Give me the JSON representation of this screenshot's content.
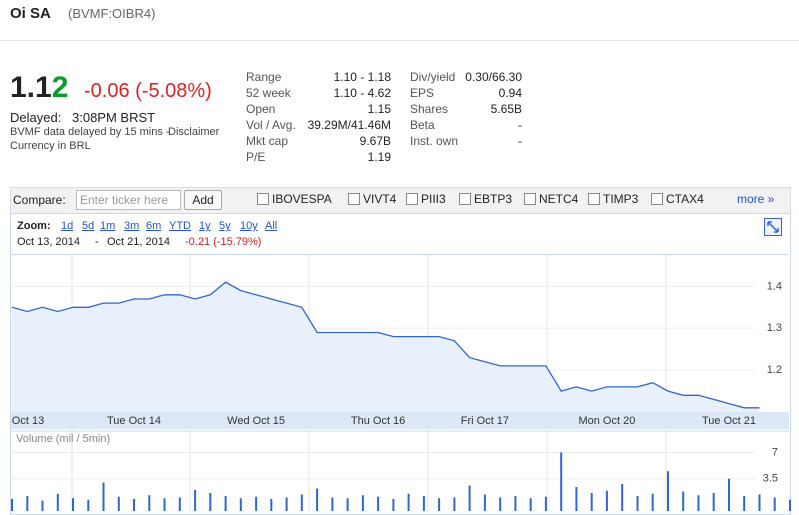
{
  "header": {
    "name": "Oi SA",
    "ticker": "(BVMF:OIBR4)"
  },
  "quote": {
    "price": "1.12",
    "change": "-0.06 (-5.08%)",
    "delayed_label": "Delayed:",
    "delayed_time": "3:08PM BRST",
    "disclaimer_note": "BVMF data delayed by 15 mins - ",
    "disclaimer_link": "Disclaimer",
    "currency": "Currency in BRL"
  },
  "stats": {
    "left": [
      [
        "Range",
        "1.10 - 1.18"
      ],
      [
        "52 week",
        "1.10 - 4.62"
      ],
      [
        "Open",
        "1.15"
      ],
      [
        "Vol / Avg.",
        "39.29M/41.46M"
      ],
      [
        "Mkt cap",
        "9.67B"
      ],
      [
        "P/E",
        "1.19"
      ]
    ],
    "right": [
      [
        "Div/yield",
        "0.30/66.30"
      ],
      [
        "EPS",
        "0.94"
      ],
      [
        "Shares",
        "5.65B"
      ],
      [
        "Beta",
        "-"
      ],
      [
        "Inst. own",
        "-"
      ]
    ]
  },
  "compare": {
    "label": "Compare:",
    "placeholder": "Enter ticker here",
    "button": "Add",
    "tickers": [
      "IBOVESPA",
      "VIVT4",
      "PIII3",
      "EBTP3",
      "NETC4",
      "TIMP3",
      "CTAX4"
    ],
    "more": "more »"
  },
  "controls": {
    "zoom_label": "Zoom:",
    "zoom": [
      "1d",
      "5d",
      "1m",
      "3m",
      "6m",
      "YTD",
      "1y",
      "5y",
      "10y",
      "All"
    ],
    "start": "Oct 13, 2014",
    "separator": "-",
    "end": "Oct 21, 2014",
    "change": "-0.21 (-15.79%)"
  },
  "chart_data": [
    {
      "type": "line",
      "categories": [
        null,
        "Oct 13",
        null,
        null,
        null,
        null,
        null,
        null,
        "Tue Oct 14",
        null,
        null,
        null,
        null,
        null,
        null,
        null,
        "Wed Oct 15",
        null,
        null,
        null,
        null,
        null,
        null,
        null,
        "Thu Oct 16",
        null,
        null,
        null,
        null,
        null,
        null,
        "Fri Oct 17",
        null,
        null,
        null,
        null,
        null,
        null,
        null,
        "Mon Oct 20",
        null,
        null,
        null,
        null,
        null,
        null,
        null,
        "Tue Oct 21",
        null,
        null,
        null,
        null
      ],
      "values": [
        1.35,
        1.34,
        1.35,
        1.34,
        1.35,
        1.35,
        1.36,
        1.36,
        1.37,
        1.37,
        1.38,
        1.38,
        1.37,
        1.38,
        1.41,
        1.39,
        1.38,
        1.37,
        1.36,
        1.35,
        1.29,
        1.29,
        1.29,
        1.29,
        1.29,
        1.28,
        1.28,
        1.28,
        1.28,
        1.27,
        1.23,
        1.22,
        1.21,
        1.21,
        1.21,
        1.21,
        1.15,
        1.16,
        1.15,
        1.16,
        1.16,
        1.16,
        1.17,
        1.15,
        1.14,
        1.14,
        1.13,
        1.12,
        1.11,
        1.11,
        null,
        null
      ],
      "color": "#3366cc",
      "ylim": [
        1.1,
        1.475
      ],
      "yticks": [
        1.2,
        1.3,
        1.4
      ],
      "grid": true
    },
    {
      "type": "bar",
      "title": "Volume (mil / 5min)",
      "values": [
        0.8,
        1.2,
        0.6,
        1.5,
        0.9,
        0.7,
        3.0,
        1.1,
        0.8,
        1.3,
        0.9,
        1.0,
        2.0,
        1.6,
        1.2,
        0.9,
        1.1,
        0.8,
        1.0,
        1.4,
        2.2,
        1.0,
        0.9,
        1.3,
        1.1,
        0.8,
        1.5,
        1.2,
        0.9,
        1.0,
        2.6,
        1.4,
        1.0,
        1.2,
        0.9,
        1.1,
        7.0,
        2.4,
        1.6,
        1.9,
        2.8,
        1.2,
        1.5,
        4.5,
        1.8,
        1.3,
        1.6,
        3.5,
        1.2,
        1.4,
        1.0,
        0.7
      ],
      "color": "#3366cc",
      "ylim": [
        0,
        8
      ],
      "yticks": [
        3.5,
        7
      ],
      "grid": true
    }
  ]
}
